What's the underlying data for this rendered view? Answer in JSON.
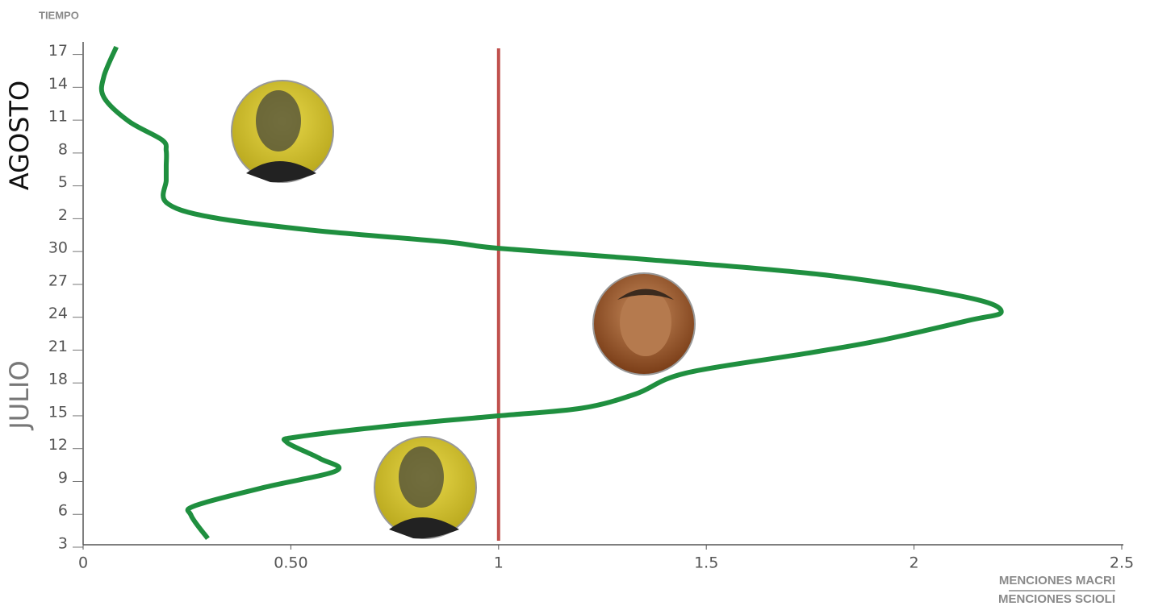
{
  "chart_data": {
    "type": "line",
    "y_label": "TIEMPO",
    "month_labels": [
      "JULIO",
      "AGOSTO"
    ],
    "x_label": {
      "numerator": "MENCIONES MACRI",
      "denominator": "MENCIONES SCIOLI"
    },
    "xlim": [
      0,
      2.5
    ],
    "xticks": [
      0,
      {
        "value": 0.5,
        "label": "0.50"
      },
      1,
      1.5,
      2,
      2.5
    ],
    "ylim": [
      3,
      49
    ],
    "yticks": [
      3,
      6,
      9,
      12,
      15,
      18,
      21,
      24,
      27,
      30,
      {
        "value": 33,
        "label": "2"
      },
      {
        "value": 36,
        "label": "5"
      },
      {
        "value": 39,
        "label": "8"
      },
      {
        "value": 42,
        "label": "11"
      },
      {
        "value": 45,
        "label": "14"
      },
      {
        "value": 48,
        "label": "17"
      }
    ],
    "days": [
      3.5,
      5.6,
      6.5,
      8.2,
      9.7,
      10.8,
      12.3,
      12.8,
      13.9,
      14.7,
      15.4,
      16.7,
      18.6,
      20.4,
      21.6,
      23.4,
      24.2,
      25.5,
      27.5,
      29,
      30,
      30.6,
      31.7,
      32.9,
      34.2,
      36.2,
      37.5,
      38.9,
      39.9,
      41.6,
      43.8,
      45.7,
      48.4
    ],
    "series": [
      {
        "color": "#1f8f3f",
        "values": [
          0.3,
          0.26,
          0.27,
          0.44,
          0.61,
          0.57,
          0.49,
          0.52,
          0.77,
          1.0,
          1.2,
          1.33,
          1.45,
          1.74,
          1.92,
          2.13,
          2.21,
          2.13,
          1.8,
          1.35,
          1.0,
          0.87,
          0.54,
          0.3,
          0.2,
          0.2,
          0.2,
          0.2,
          0.19,
          0.11,
          0.05,
          0.05,
          0.08
        ]
      }
    ],
    "reference_line": {
      "x": 1,
      "color": "#c0504d"
    }
  }
}
